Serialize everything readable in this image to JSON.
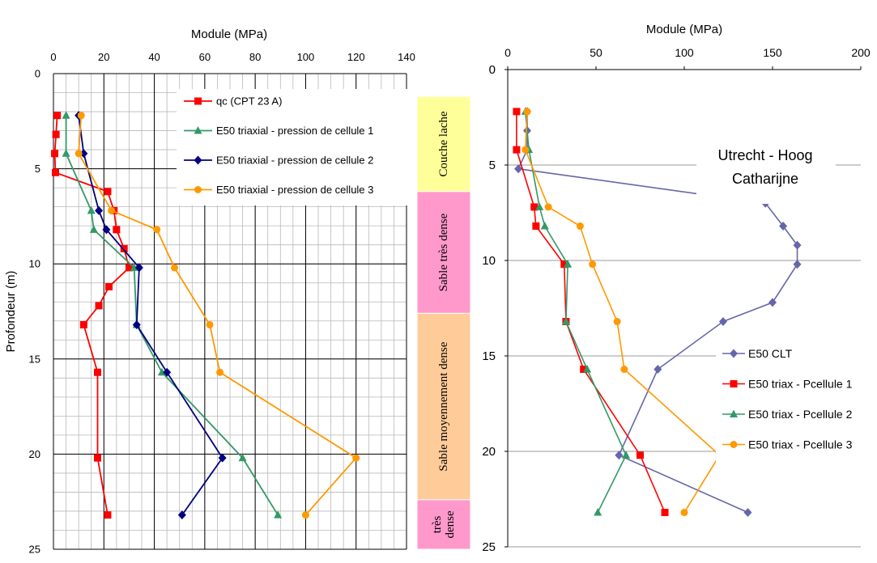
{
  "left_chart_labels": {
    "xlabel": "Module (MPa)",
    "ylabel": "Profondeur (m)"
  },
  "right_chart_labels": {
    "xlabel": "Module (MPa)",
    "annotation_line1": "Utrecht - Hoog",
    "annotation_line2": "Catharijne"
  },
  "layers": [
    {
      "name": "Couche lache",
      "from": 1.2,
      "to": 6.2,
      "color": "#ffff99"
    },
    {
      "name": "Sable très dense",
      "from": 6.2,
      "to": 12.6,
      "color": "#ff99cc"
    },
    {
      "name": "Sable moyennement dense",
      "from": 12.6,
      "to": 22.4,
      "color": "#ffcc99"
    },
    {
      "name_lines": [
        "très",
        "dense"
      ],
      "from": 22.4,
      "to": 25,
      "color": "#ff99cc"
    }
  ],
  "chart_data": [
    {
      "type": "line",
      "xlabel": "Module (MPa)",
      "ylabel": "Profondeur (m)",
      "xlim": [
        0,
        140
      ],
      "ylim": [
        0,
        25
      ],
      "y_inverted": true,
      "x_axis_position": "top",
      "x_ticks": [
        0,
        20,
        40,
        60,
        80,
        100,
        120,
        140
      ],
      "y_ticks": [
        0,
        5,
        10,
        15,
        20,
        25
      ],
      "grid": true,
      "legend": "top-right",
      "series": [
        {
          "name": "qc (CPT 23 A)",
          "color": "#ff0000",
          "marker": "square",
          "points": [
            [
              1.5,
              2.2
            ],
            [
              1,
              3.2
            ],
            [
              0.5,
              4.2
            ],
            [
              0.8,
              5.2
            ],
            [
              21.5,
              6.2
            ],
            [
              24,
              7.2
            ],
            [
              25,
              8.2
            ],
            [
              28,
              9.2
            ],
            [
              30,
              10.2
            ],
            [
              22,
              11.2
            ],
            [
              18,
              12.2
            ],
            [
              12,
              13.2
            ],
            [
              17.5,
              15.7
            ],
            [
              17.5,
              20.2
            ],
            [
              21.5,
              23.2
            ]
          ]
        },
        {
          "name": "E50 triaxial - pression de cellule 1",
          "color": "#339966",
          "marker": "triangle",
          "points": [
            [
              5,
              2.2
            ],
            [
              5,
              4.2
            ],
            [
              15,
              7.2
            ],
            [
              16,
              8.2
            ],
            [
              32,
              10.2
            ],
            [
              33,
              13.2
            ],
            [
              43,
              15.7
            ],
            [
              75,
              20.2
            ],
            [
              89,
              23.2
            ]
          ]
        },
        {
          "name": "E50 triaxial - pression de cellule 2",
          "color": "#000080",
          "marker": "diamond",
          "points": [
            [
              10,
              2.2
            ],
            [
              12,
              4.2
            ],
            [
              18,
              7.2
            ],
            [
              21,
              8.2
            ],
            [
              34,
              10.2
            ],
            [
              33,
              13.2
            ],
            [
              45,
              15.7
            ],
            [
              67,
              20.2
            ],
            [
              51,
              23.2
            ]
          ]
        },
        {
          "name": "E50 triaxial - pression de cellule 3",
          "color": "#ff9900",
          "marker": "circle",
          "points": [
            [
              11,
              2.2
            ],
            [
              10,
              4.2
            ],
            [
              23,
              7.2
            ],
            [
              41,
              8.2
            ],
            [
              48,
              10.2
            ],
            [
              62,
              13.2
            ],
            [
              66,
              15.7
            ],
            [
              120,
              20.2
            ],
            [
              100,
              23.2
            ]
          ]
        }
      ]
    },
    {
      "type": "line",
      "xlabel": "Module (MPa)",
      "xlim": [
        0,
        200
      ],
      "ylim": [
        0,
        25
      ],
      "y_inverted": true,
      "x_axis_position": "top",
      "x_ticks": [
        0,
        50,
        100,
        150,
        200
      ],
      "y_ticks": [
        0,
        5,
        10,
        15,
        20,
        25
      ],
      "grid": true,
      "legend": "bottom-right",
      "series": [
        {
          "name": "E50 CLT",
          "color": "#6666aa",
          "marker": "diamond",
          "points": [
            [
              11,
              2.2
            ],
            [
              11,
              3.2
            ],
            [
              11,
              4.2
            ],
            [
              6,
              5.2
            ],
            [
              146,
              7.0
            ],
            [
              156,
              8.2
            ],
            [
              164,
              9.2
            ],
            [
              164,
              10.2
            ],
            [
              150,
              12.2
            ],
            [
              122,
              13.2
            ],
            [
              85,
              15.7
            ],
            [
              63,
              20.2
            ],
            [
              136,
              23.2
            ]
          ]
        },
        {
          "name": "E50 triax - Pcellule 1",
          "color": "#ff0000",
          "marker": "square",
          "points": [
            [
              5,
              2.2
            ],
            [
              5,
              4.2
            ],
            [
              15,
              7.2
            ],
            [
              16,
              8.2
            ],
            [
              32,
              10.2
            ],
            [
              33,
              13.2
            ],
            [
              43,
              15.7
            ],
            [
              75,
              20.2
            ],
            [
              89,
              23.2
            ]
          ]
        },
        {
          "name": "E50 triax - Pcellule 2",
          "color": "#339966",
          "marker": "triangle",
          "points": [
            [
              10,
              2.2
            ],
            [
              12,
              4.2
            ],
            [
              18,
              7.2
            ],
            [
              21,
              8.2
            ],
            [
              34,
              10.2
            ],
            [
              33,
              13.2
            ],
            [
              45,
              15.7
            ],
            [
              67,
              20.2
            ],
            [
              51,
              23.2
            ]
          ]
        },
        {
          "name": "E50 triax - Pcellule 3",
          "color": "#ff9900",
          "marker": "circle",
          "points": [
            [
              11,
              2.2
            ],
            [
              10,
              4.2
            ],
            [
              23,
              7.2
            ],
            [
              41,
              8.2
            ],
            [
              48,
              10.2
            ],
            [
              62,
              13.2
            ],
            [
              66,
              15.7
            ],
            [
              120,
              20.2
            ],
            [
              100,
              23.2
            ]
          ]
        }
      ]
    }
  ]
}
